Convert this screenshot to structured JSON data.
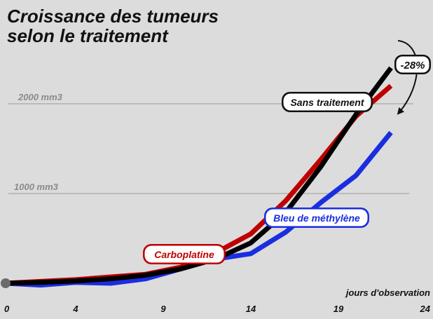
{
  "chart_data": {
    "type": "line",
    "title_lines": [
      "Croissance des tumeurs",
      "selon le traitement"
    ],
    "xlabel": "jours d'observation",
    "ylabel": "",
    "x_ticks": [
      "0",
      "4",
      "9",
      "14",
      "19",
      "24"
    ],
    "xlim": [
      0,
      24
    ],
    "ylim": [
      -40,
      2500
    ],
    "reference_lines": [
      {
        "value": 2000,
        "label": "2000 mm3"
      },
      {
        "value": 1000,
        "label": "1000 mm3"
      }
    ],
    "series": [
      {
        "name": "Sans traitement",
        "color": "#000000",
        "x": [
          0,
          2,
          4,
          6,
          8,
          10,
          12,
          14,
          16,
          18,
          20,
          22
        ],
        "y": [
          0,
          10,
          25,
          50,
          90,
          160,
          270,
          450,
          790,
          1300,
          1880,
          2400
        ]
      },
      {
        "name": "Carboplatine",
        "color": "#c00000",
        "x": [
          0,
          2,
          4,
          6,
          8,
          10,
          12,
          14,
          16,
          18,
          20,
          22
        ],
        "y": [
          0,
          20,
          40,
          70,
          100,
          180,
          340,
          550,
          920,
          1380,
          1860,
          2200
        ]
      },
      {
        "name": "Bleu de méthylène",
        "color": "#1a2ee0",
        "x": [
          0,
          2,
          4,
          6,
          8,
          10,
          12,
          14,
          16,
          18,
          20,
          22
        ],
        "y": [
          0,
          -20,
          10,
          0,
          50,
          160,
          270,
          330,
          570,
          900,
          1200,
          1680
        ]
      }
    ],
    "annotation": {
      "label": "-28%"
    }
  }
}
